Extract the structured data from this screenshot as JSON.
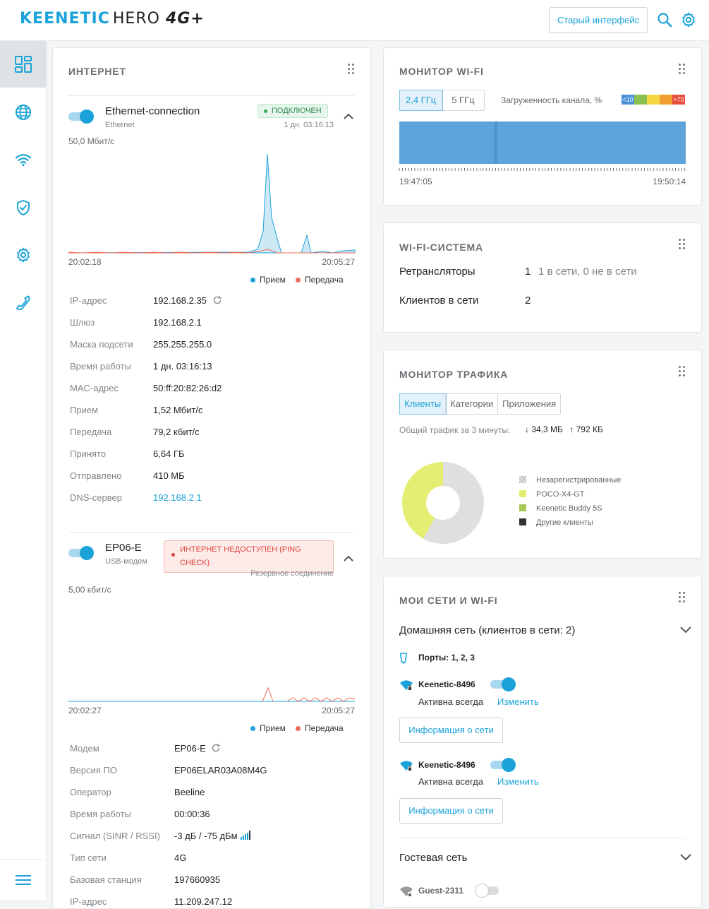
{
  "header": {
    "brand": "KEENETIC",
    "model": "HERO",
    "model_suffix": "4G+",
    "old_ui_label": "Старый интерфейс"
  },
  "internet": {
    "title": "ИНТЕРНЕТ",
    "conn1": {
      "name": "Ethernet-connection",
      "type": "Ethernet",
      "status": "ПОДКЛЮЧЕН",
      "uptime": "1 дн. 03:16:13",
      "scale": "50,0 Мбит/с",
      "t_start": "20:02:18",
      "t_end": "20:05:27",
      "legend_rx": "Прием",
      "legend_tx": "Передача",
      "rows": [
        {
          "label": "IP-адрес",
          "value": "192.168.2.35"
        },
        {
          "label": "Шлюз",
          "value": "192.168.2.1"
        },
        {
          "label": "Маска подсети",
          "value": "255.255.255.0"
        },
        {
          "label": "Время работы",
          "value": "1 дн. 03:16:13"
        },
        {
          "label": "MAC-адрес",
          "value": "50:ff:20:82:26:d2"
        },
        {
          "label": "Прием",
          "value": "1,52 Мбит/с"
        },
        {
          "label": "Передача",
          "value": "79,2 кбит/с"
        },
        {
          "label": "Принято",
          "value": "6,64 ГБ"
        },
        {
          "label": "Отправлено",
          "value": "410 МБ"
        },
        {
          "label": "DNS-сервер",
          "value": "192.168.2.1"
        }
      ]
    },
    "conn2": {
      "name": "EP06-E",
      "type": "USB-модем",
      "status_line1": "ИНТЕРНЕТ НЕДОСТУПЕН (PING",
      "status_line2": "CHECK)",
      "backup": "Резервное соединение",
      "scale": "5,00 кбит/с",
      "t_start": "20:02:27",
      "t_end": "20:05:27",
      "legend_rx": "Прием",
      "legend_tx": "Передача",
      "rows": [
        {
          "label": "Модем",
          "value": "EP06-E"
        },
        {
          "label": "Версия ПО",
          "value": "EP06ELAR03A08M4G"
        },
        {
          "label": "Оператор",
          "value": "Beeline"
        },
        {
          "label": "Время работы",
          "value": "00:00:36"
        },
        {
          "label": "Сигнал (SINR / RSSI)",
          "value": "-3 дБ / -75 дБм"
        },
        {
          "label": "Тип сети",
          "value": "4G"
        },
        {
          "label": "Базовая станция",
          "value": "197660935"
        },
        {
          "label": "IP-адрес",
          "value": "11.209.247.12"
        }
      ]
    }
  },
  "wifi_monitor": {
    "title": "МОНИТОР WI-FI",
    "tabs": [
      "2,4 ГГц",
      "5 ГГц"
    ],
    "load_label": "Загруженность канала, %",
    "scale_low": "<10",
    "scale_high": ">70",
    "t_start": "19:47:05",
    "t_end": "19:50:14",
    "colors": [
      "#4a90d9",
      "#8cc152",
      "#f6d743",
      "#f0a030",
      "#e84c3d"
    ]
  },
  "wifi_system": {
    "title": "WI-FI-СИСТЕМА",
    "repeaters_label": "Ретрансляторы",
    "repeaters_count": "1",
    "repeaters_detail": "1 в сети, 0 не в сети",
    "clients_label": "Клиентов в сети",
    "clients_count": "2"
  },
  "traffic": {
    "title": "МОНИТОР ТРАФИКА",
    "tabs": [
      "Клиенты",
      "Категории",
      "Приложения"
    ],
    "total_label": "Общий трафик за 3 минуты:",
    "down": "34,3 МБ",
    "up": "792 КБ",
    "legend": [
      {
        "name": "Незарегистрированные",
        "color": "#bbbbbb",
        "share": 0.58
      },
      {
        "name": "POCO-X4-GT",
        "color": "#e3ee72",
        "share": 0.42
      },
      {
        "name": "Keenetic Buddy 5S",
        "color": "#a8c85a",
        "share": 0.0
      },
      {
        "name": "Другие клиенты",
        "color": "#333333",
        "share": 0.0
      }
    ]
  },
  "networks": {
    "title": "МОИ СЕТИ И WI-FI",
    "home_label": "Домашняя сеть (клиентов в сети: 2)",
    "ports": "Порты: 1, 2, 3",
    "ssid1": "Keenetic-8496",
    "ssid1_mode": "Активна всегда",
    "ssid1_edit": "Изменить",
    "ssid1_info": "Информация о сети",
    "ssid2": "Keenetic-8496",
    "ssid2_mode": "Активна всегда",
    "ssid2_edit": "Изменить",
    "ssid2_info": "Информация о сети",
    "guest_label": "Гостевая сеть",
    "guest_ssid": "Guest-2311"
  }
}
